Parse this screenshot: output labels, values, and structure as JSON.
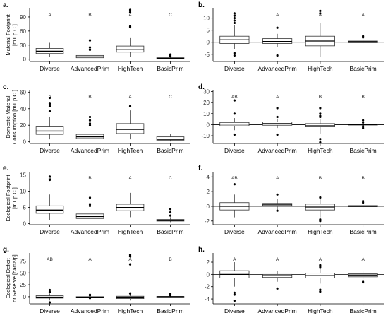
{
  "chart_data": [
    {
      "panel_label": "a.",
      "type": "boxplot",
      "ylabel": "Material Footprint\n[mT p.C.]",
      "ylim": [
        -5,
        108
      ],
      "yticks": [
        0,
        30,
        60,
        90
      ],
      "hline_zero": false,
      "categories": [
        "Diverse",
        "AdvancedPrim",
        "HighTech",
        "BasicPrim"
      ],
      "letters": [
        "A",
        "B",
        "A",
        "C"
      ],
      "boxes": [
        {
          "min": 5,
          "q1": 12,
          "median": 17,
          "q3": 23,
          "max": 35,
          "outliers": []
        },
        {
          "min": 1,
          "q1": 3,
          "median": 5,
          "q3": 8,
          "max": 14,
          "outliers": [
            20,
            25,
            40
          ]
        },
        {
          "min": 5,
          "q1": 15,
          "median": 21,
          "q3": 28,
          "max": 45,
          "outliers": [
            68,
            70,
            100,
            105
          ]
        },
        {
          "min": 0.5,
          "q1": 1,
          "median": 2,
          "q3": 3,
          "max": 5,
          "outliers": [
            6,
            7,
            9,
            10
          ]
        }
      ]
    },
    {
      "panel_label": "b.",
      "type": "boxplot",
      "ylabel": "",
      "ylim": [
        -8,
        14
      ],
      "yticks": [
        -5,
        0,
        5,
        10
      ],
      "hline_zero": true,
      "categories": [
        "Diverse",
        "AdvancedPrim",
        "HighTech",
        "BasicPrim"
      ],
      "letters": [
        "A",
        "A",
        "A",
        "A"
      ],
      "boxes": [
        {
          "min": -3,
          "q1": -0.5,
          "median": 1,
          "q3": 2.5,
          "max": 7,
          "outliers": [
            8,
            9,
            10,
            11,
            12,
            -4.5,
            -5.5
          ]
        },
        {
          "min": -2,
          "q1": -0.5,
          "median": 0.3,
          "q3": 1.5,
          "max": 3.5,
          "outliers": [
            6,
            -5.5
          ]
        },
        {
          "min": -6,
          "q1": -1.5,
          "median": 0.5,
          "q3": 2.5,
          "max": 8,
          "outliers": [
            12,
            13
          ]
        },
        {
          "min": -0.5,
          "q1": -0.2,
          "median": 0.2,
          "q3": 0.5,
          "max": 1.2,
          "outliers": [
            2,
            2.5
          ]
        }
      ]
    },
    {
      "panel_label": "c.",
      "type": "boxplot",
      "ylabel": "Domestic Material\nConsumption [mT p.C.]",
      "ylim": [
        -2,
        62
      ],
      "yticks": [
        0,
        20,
        40,
        60
      ],
      "hline_zero": false,
      "categories": [
        "Diverse",
        "AdvancedPrim",
        "HighTech",
        "BasicPrim"
      ],
      "letters": [
        "A",
        "B",
        "A",
        "C"
      ],
      "boxes": [
        {
          "min": 3,
          "q1": 9,
          "median": 13,
          "q3": 18,
          "max": 30,
          "outliers": [
            37,
            43,
            46,
            53
          ]
        },
        {
          "min": 1,
          "q1": 4,
          "median": 6,
          "q3": 9,
          "max": 16,
          "outliers": [
            20,
            22,
            26,
            30
          ]
        },
        {
          "min": 3,
          "q1": 10,
          "median": 15,
          "q3": 22,
          "max": 38,
          "outliers": [
            43
          ]
        },
        {
          "min": 0.5,
          "q1": 2,
          "median": 3,
          "q3": 6,
          "max": 10,
          "outliers": []
        }
      ]
    },
    {
      "panel_label": "d.",
      "type": "boxplot",
      "ylabel": "",
      "ylim": [
        -17,
        31
      ],
      "yticks": [
        -10,
        0,
        10,
        20,
        30
      ],
      "hline_zero": true,
      "categories": [
        "Diverse",
        "AdvancedPrim",
        "HighTech",
        "BasicPrim"
      ],
      "letters": [
        "AB",
        "A",
        "B",
        "B"
      ],
      "boxes": [
        {
          "min": -5,
          "q1": -1,
          "median": 0.5,
          "q3": 2,
          "max": 6,
          "outliers": [
            10,
            22,
            -9
          ]
        },
        {
          "min": -3,
          "q1": -0.5,
          "median": 1,
          "q3": 2.5,
          "max": 5,
          "outliers": [
            7,
            15,
            -9
          ]
        },
        {
          "min": -8,
          "q1": -2,
          "median": -1,
          "q3": 1,
          "max": 5,
          "outliers": [
            7,
            8,
            10,
            15,
            -13,
            -16
          ]
        },
        {
          "min": -1,
          "q1": -0.3,
          "median": 0,
          "q3": 0.3,
          "max": 1,
          "outliers": [
            2,
            4,
            -1.5,
            -3
          ]
        }
      ]
    },
    {
      "panel_label": "e.",
      "type": "boxplot",
      "ylabel": "Ecological Footprint\n[mT p.C.]",
      "ylim": [
        -0.3,
        16
      ],
      "yticks": [
        0,
        5,
        10,
        15
      ],
      "hline_zero": false,
      "categories": [
        "Diverse",
        "AdvancedPrim",
        "HighTech",
        "BasicPrim"
      ],
      "letters": [
        "A",
        "B",
        "A",
        "C"
      ],
      "boxes": [
        {
          "min": 1,
          "q1": 3.2,
          "median": 4.2,
          "q3": 5.5,
          "max": 9,
          "outliers": [
            13.5,
            14.5
          ]
        },
        {
          "min": 0.8,
          "q1": 1.6,
          "median": 2.2,
          "q3": 3,
          "max": 5,
          "outliers": [
            5.5,
            6,
            8
          ]
        },
        {
          "min": 2,
          "q1": 4,
          "median": 5,
          "q3": 6,
          "max": 9.5,
          "outliers": []
        },
        {
          "min": 0.5,
          "q1": 0.8,
          "median": 1,
          "q3": 1.3,
          "max": 2,
          "outliers": [
            2.5,
            3.5,
            4.5
          ]
        }
      ]
    },
    {
      "panel_label": "f.",
      "type": "boxplot",
      "ylabel": "",
      "ylim": [
        -2.5,
        4.7
      ],
      "yticks": [
        -2,
        0,
        2,
        4
      ],
      "hline_zero": true,
      "categories": [
        "Diverse",
        "AdvancedPrim",
        "HighTech",
        "BasicPrim"
      ],
      "letters": [
        "AB",
        "A",
        "B",
        "B"
      ],
      "boxes": [
        {
          "min": -1.5,
          "q1": -0.5,
          "median": 0,
          "q3": 0.5,
          "max": 1.6,
          "outliers": [
            3
          ]
        },
        {
          "min": -0.5,
          "q1": 0,
          "median": 0.2,
          "q3": 0.4,
          "max": 1,
          "outliers": [
            1.6,
            -0.6
          ]
        },
        {
          "min": -1.5,
          "q1": -0.5,
          "median": -0.1,
          "q3": 0.3,
          "max": 1,
          "outliers": [
            1.2,
            -1.8,
            -2
          ]
        },
        {
          "min": -0.2,
          "q1": -0.05,
          "median": 0,
          "q3": 0.1,
          "max": 0.3,
          "outliers": [
            0.5,
            0.7
          ]
        }
      ]
    },
    {
      "panel_label": "g.",
      "type": "boxplot",
      "ylabel": "Ecological Deficit\nor Reserve [hacta/p]",
      "ylim": [
        -15,
        92
      ],
      "yticks": [
        0,
        25,
        50,
        75
      ],
      "hline_zero": false,
      "categories": [
        "Diverse",
        "AdvancedPrim",
        "HighTech",
        "BasicPrim"
      ],
      "letters": [
        "AB",
        "A",
        "A",
        "B"
      ],
      "boxes": [
        {
          "min": -8,
          "q1": -3,
          "median": -1,
          "q3": 2,
          "max": 7,
          "outliers": [
            10,
            14,
            -12
          ]
        },
        {
          "min": -4,
          "q1": -2,
          "median": -1,
          "q3": 0,
          "max": 2,
          "outliers": [
            3,
            4,
            -3
          ]
        },
        {
          "min": -8,
          "q1": -4,
          "median": -1,
          "q3": 1,
          "max": 5,
          "outliers": [
            7,
            68,
            85,
            86,
            88
          ]
        },
        {
          "min": -1,
          "q1": -0.5,
          "median": 0,
          "q3": 0.5,
          "max": 2,
          "outliers": [
            3,
            4,
            6
          ]
        }
      ]
    },
    {
      "panel_label": "h.",
      "type": "boxplot",
      "ylabel": "",
      "ylim": [
        -4.8,
        3.5
      ],
      "yticks": [
        -4,
        -2,
        0,
        2
      ],
      "hline_zero": true,
      "categories": [
        "Diverse",
        "AdvancedPrim",
        "HighTech",
        "BasicPrim"
      ],
      "letters": [
        "A",
        "A",
        "A",
        "A"
      ],
      "boxes": [
        {
          "min": -2,
          "q1": -0.6,
          "median": 0,
          "q3": 0.6,
          "max": 2,
          "outliers": [
            -3,
            -3.3,
            -4.3
          ]
        },
        {
          "min": -1.2,
          "q1": -0.5,
          "median": -0.2,
          "q3": 0,
          "max": 0.5,
          "outliers": [
            -2.3
          ]
        },
        {
          "min": -1.5,
          "q1": -0.6,
          "median": -0.2,
          "q3": 0.2,
          "max": 1,
          "outliers": [
            1.2,
            1.5,
            -2.5,
            -2.8
          ]
        },
        {
          "min": -0.8,
          "q1": -0.4,
          "median": -0.1,
          "q3": 0.1,
          "max": 0.6,
          "outliers": [
            -1.1,
            -1.3
          ]
        }
      ]
    }
  ]
}
